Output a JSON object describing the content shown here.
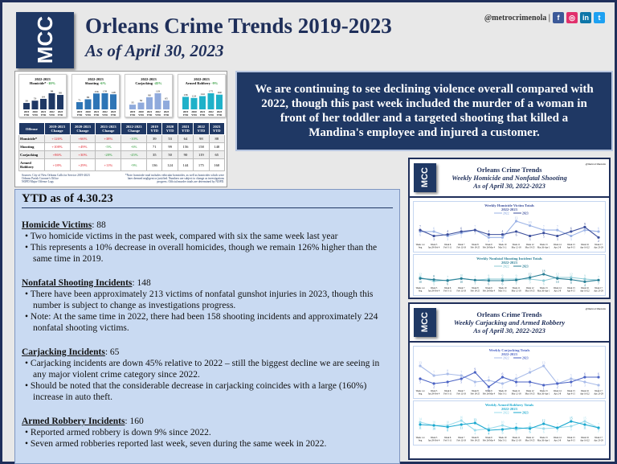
{
  "header": {
    "logo": "MCC",
    "title": "Orleans Crime Trends 2019-2023",
    "subtitle": "As of April 30, 2023",
    "handle": "@metrocrimenola |",
    "social": [
      "facebook-icon",
      "instagram-icon",
      "linkedin-icon",
      "twitter-icon"
    ]
  },
  "colors": {
    "navy": "#1f3864",
    "homicide": "#1f3864",
    "shooting": "#2e75b6",
    "carjacking": "#8faadc",
    "armed_robbery": "#1fb1c9",
    "increase": "#e0202a",
    "decrease": "#2e9b3a"
  },
  "chart_data": [
    {
      "type": "bar",
      "title": "2022-2023",
      "subtitle": "Homicide*",
      "change": "-10%",
      "categories": [
        "2019 YTD",
        "2020 YTD",
        "2021 YTD",
        "2022 YTD",
        "2023 YTD"
      ],
      "values": [
        39,
        53,
        64,
        98,
        88
      ],
      "color": "#1f3864"
    },
    {
      "type": "bar",
      "title": "2022-2023",
      "subtitle": "Shooting",
      "change": "-6%",
      "categories": [
        "2019 YTD",
        "2020 YTD",
        "2021 YTD",
        "2022 YTD",
        "2023 YTD"
      ],
      "values": [
        71,
        99,
        156,
        158,
        148
      ],
      "color": "#2e75b6"
    },
    {
      "type": "bar",
      "title": "2022-2023",
      "subtitle": "Carjacking",
      "change": "-45%",
      "categories": [
        "2019 YTD",
        "2020 YTD",
        "2021 YTD",
        "2022 YTD",
        "2023 YTD"
      ],
      "values": [
        35,
        50,
        90,
        119,
        65
      ],
      "color": "#8faadc"
    },
    {
      "type": "bar",
      "title": "2022-2023",
      "subtitle": "Armed Robbery",
      "change": "-9%",
      "categories": [
        "2019 YTD",
        "2020 YTD",
        "2021 YTD",
        "2022 YTD",
        "2023 YTD"
      ],
      "values": [
        136,
        124,
        144,
        175,
        160
      ],
      "color": "#1fb1c9"
    },
    {
      "type": "line",
      "title": "Weekly Homicide Victim Totals",
      "subtitle": "2022-2023",
      "categories": [
        "Week 1-4 Avg",
        "Week 5 Jan 29-Feb 4",
        "Week 6 Feb 5-11",
        "Week 7 Feb 12-18",
        "Week 8 Feb 19-25",
        "Week 9 Feb 26-Mar 4",
        "Week 10 Mar 5-11",
        "Week 11 Mar 12-18",
        "Week 12 Mar 19-25",
        "Week 13 Mar 26-Apr 1",
        "Week 14 Apr 2-8",
        "Week 15 Apr 9-15",
        "Week 16 Apr 16-22",
        "Week 17 Apr 23-29"
      ],
      "series": [
        {
          "name": "2022",
          "values": [
            6,
            6,
            3,
            5,
            7,
            2,
            2,
            13,
            10,
            7,
            7,
            3,
            7,
            6
          ],
          "color": "#9bb3e6"
        },
        {
          "name": "2023",
          "values": [
            7,
            3,
            4,
            6,
            7,
            4,
            4,
            6,
            3,
            5,
            3,
            6,
            9,
            2
          ],
          "color": "#3c4f9c"
        }
      ]
    },
    {
      "type": "line",
      "title": "Weekly Nonfatal Shooting Incident Totals",
      "subtitle": "2022-2023",
      "categories": [
        "Week 1-4 Avg",
        "Week 5 Jan 29-Feb 4",
        "Week 6 Feb 5-11",
        "Week 7 Feb 12-18",
        "Week 8 Feb 19-25",
        "Week 9 Feb 26-Mar 4",
        "Week 10 Mar 5-11",
        "Week 11 Mar 12-18",
        "Week 12 Mar 19-25",
        "Week 13 Mar 26-Apr 1",
        "Week 14 Apr 2-8",
        "Week 15 Apr 9-15",
        "Week 16 Apr 16-22",
        "Week 17 Apr 23-29"
      ],
      "series": [
        {
          "name": "2022",
          "values": [
            12,
            5,
            7,
            10,
            7,
            9,
            9,
            9,
            9,
            6,
            12,
            12,
            9,
            7
          ],
          "color": "#8ecbd6"
        },
        {
          "name": "2023",
          "values": [
            10,
            8,
            6,
            10,
            7,
            6,
            6,
            7,
            12,
            18,
            10,
            8,
            4,
            7
          ],
          "color": "#2a7f96"
        }
      ]
    },
    {
      "type": "line",
      "title": "Weekly Carjacking Totals",
      "subtitle": "2022-2023",
      "categories": [
        "Week 1-4 Avg",
        "Week 5 Jan 29-Feb 4",
        "Week 6 Feb 5-11",
        "Week 7 Feb 12-18",
        "Week 8 Feb 19-25",
        "Week 9 Feb 26-Mar 4",
        "Week 10 Mar 5-11",
        "Week 11 Mar 12-18",
        "Week 12 Mar 19-25",
        "Week 13 Mar 26-Apr 1",
        "Week 14 Apr 2-8",
        "Week 15 Apr 9-15",
        "Week 16 Apr 16-22",
        "Week 17 Apr 23-29"
      ],
      "series": [
        {
          "name": "2022",
          "values": [
            13,
            7,
            8,
            7,
            3,
            4,
            2,
            5,
            9,
            13,
            2,
            5,
            3,
            1
          ],
          "color": "#a9bce9"
        },
        {
          "name": "2023",
          "values": [
            5,
            2,
            3,
            5,
            9,
            0,
            6,
            3,
            3,
            1,
            2,
            3,
            6,
            6
          ],
          "color": "#4b63c4"
        }
      ]
    },
    {
      "type": "line",
      "title": "Weekly Armed Robbery Totals",
      "subtitle": "2022-2023",
      "categories": [
        "Week 1-4 Avg",
        "Week 5 Jan 29-Feb 4",
        "Week 6 Feb 5-11",
        "Week 7 Feb 12-18",
        "Week 8 Feb 19-25",
        "Week 9 Feb 26-Mar 4",
        "Week 10 Mar 5-11",
        "Week 11 Mar 12-18",
        "Week 12 Mar 19-25",
        "Week 13 Mar 26-Apr 1",
        "Week 14 Apr 2-8",
        "Week 15 Apr 9-15",
        "Week 16 Apr 16-22",
        "Week 17 Apr 23-29"
      ],
      "series": [
        {
          "name": "2022",
          "values": [
            14,
            10,
            10,
            16,
            4,
            6,
            10,
            5,
            8,
            6,
            7,
            9,
            15,
            7
          ],
          "color": "#9ddcec"
        },
        {
          "name": "2023",
          "values": [
            11,
            10,
            8,
            11,
            13,
            4,
            5,
            7,
            6,
            12,
            7,
            15,
            11,
            7
          ],
          "color": "#1aa8cf"
        }
      ]
    }
  ],
  "table": {
    "headers": [
      "Offense",
      "2019-2023 Change",
      "2020-2023 Change",
      "2021-2023 Change",
      "2022-2023 Change",
      "2019 YTD",
      "2020 YTD",
      "2021 YTD",
      "2022 YTD",
      "2023 YTD"
    ],
    "rows": [
      [
        "Homicide*",
        "+126%",
        "+66%",
        "+38%",
        "-10%",
        "39",
        "53",
        "64",
        "98",
        "88"
      ],
      [
        "Shooting",
        "+108%",
        "+49%",
        "-5%",
        "-6%",
        "71",
        "99",
        "156",
        "158",
        "148"
      ],
      [
        "Carjacking",
        "+86%",
        "+30%",
        "-28%",
        "-45%",
        "35",
        "50",
        "90",
        "119",
        "65"
      ],
      [
        "Armed Robbery",
        "+18%",
        "+29%",
        "+11%",
        "-9%",
        "136",
        "124",
        "144",
        "175",
        "160"
      ]
    ],
    "sources": "Sources: City of New Orleans Calls for Service 2019-2023\nOrleans Parish Coroner's Office\nNOPD Major Offense Logs",
    "note": "*Note: homicide total includes vehicular homicides, as well as homicides which were later deemed negligent or justified. Numbers are subject to change as investigations progress. Official murder totals are determined by NOPD."
  },
  "callout": "We are continuing to see declining violence overall compared with 2022, though this past week included the murder of a woman in front of her toddler and a targeted shooting that killed a Mandina's employee and injured a customer.",
  "ytd": {
    "heading": "YTD as of 4.30.23",
    "sections": [
      {
        "title": "Homicide Victims",
        "value": ": 88",
        "bullets": [
          "Two homicide victims in the past week, compared with six the same week last year",
          "This represents a 10% decrease in overall homicides, though we remain 126% higher than the same time in 2019."
        ]
      },
      {
        "title": "Nonfatal Shooting Incidents",
        "value": ": 148",
        "bullets": [
          "There have been approximately 213 victims of nonfatal gunshot injuries in 2023, though this number is subject to change as investigations progress.",
          "Note: At the same time in 2022, there had been 158 shooting incidents and approximately 224 nonfatal shooting victims."
        ]
      },
      {
        "title": "Carjacking Incidents",
        "value": ": 65",
        "bullets": [
          "Carjacking incidents are down 45% relative to 2022 – still the biggest decline we are seeing in any major violent crime category since 2022.",
          "Should be noted that the considerable decrease in carjacking coincides with a large (160%) increase in auto theft."
        ]
      },
      {
        "title": "Armed Robbery Incidents",
        "value": ": 160",
        "bullets": [
          "Reported armed robbery is down 9% since 2022.",
          "Seven armed robberies reported last week, seven during the same week in 2022."
        ]
      }
    ]
  },
  "cards": [
    {
      "t1": "Orleans Crime Trends",
      "t2": "Weekly Homicide and Nonfatal Shooting",
      "t3": "As of April 30, 2022-2023",
      "handle": "@metrocrimenola"
    },
    {
      "t1": "Orleans Crime Trends",
      "t2": "Weekly Carjacking and Armed Robbery",
      "t3": "As of April 30, 2022-2023",
      "handle": "@metrocrimenola"
    }
  ]
}
